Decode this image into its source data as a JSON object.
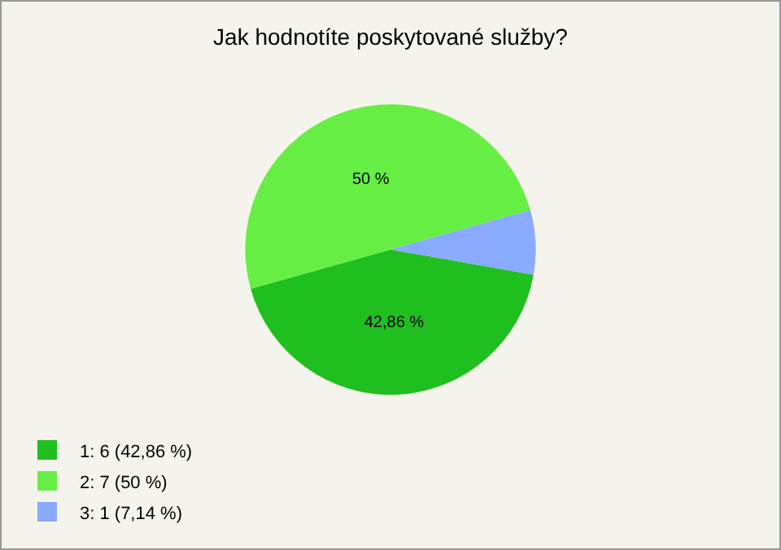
{
  "chart_data": {
    "type": "pie",
    "title": "Jak hodnotíte poskytované služby?",
    "categories": [
      "1: 6 (42,86 %)",
      "2: 7 (50 %)",
      "3: 1 (7,14 %)"
    ],
    "values": [
      42.86,
      50,
      7.14
    ],
    "colors": [
      "#1fbf1f",
      "#66ee44",
      "#88aaff"
    ],
    "value_labels": [
      "42,86 %",
      "50 %",
      null
    ],
    "legend": "bottom left"
  }
}
